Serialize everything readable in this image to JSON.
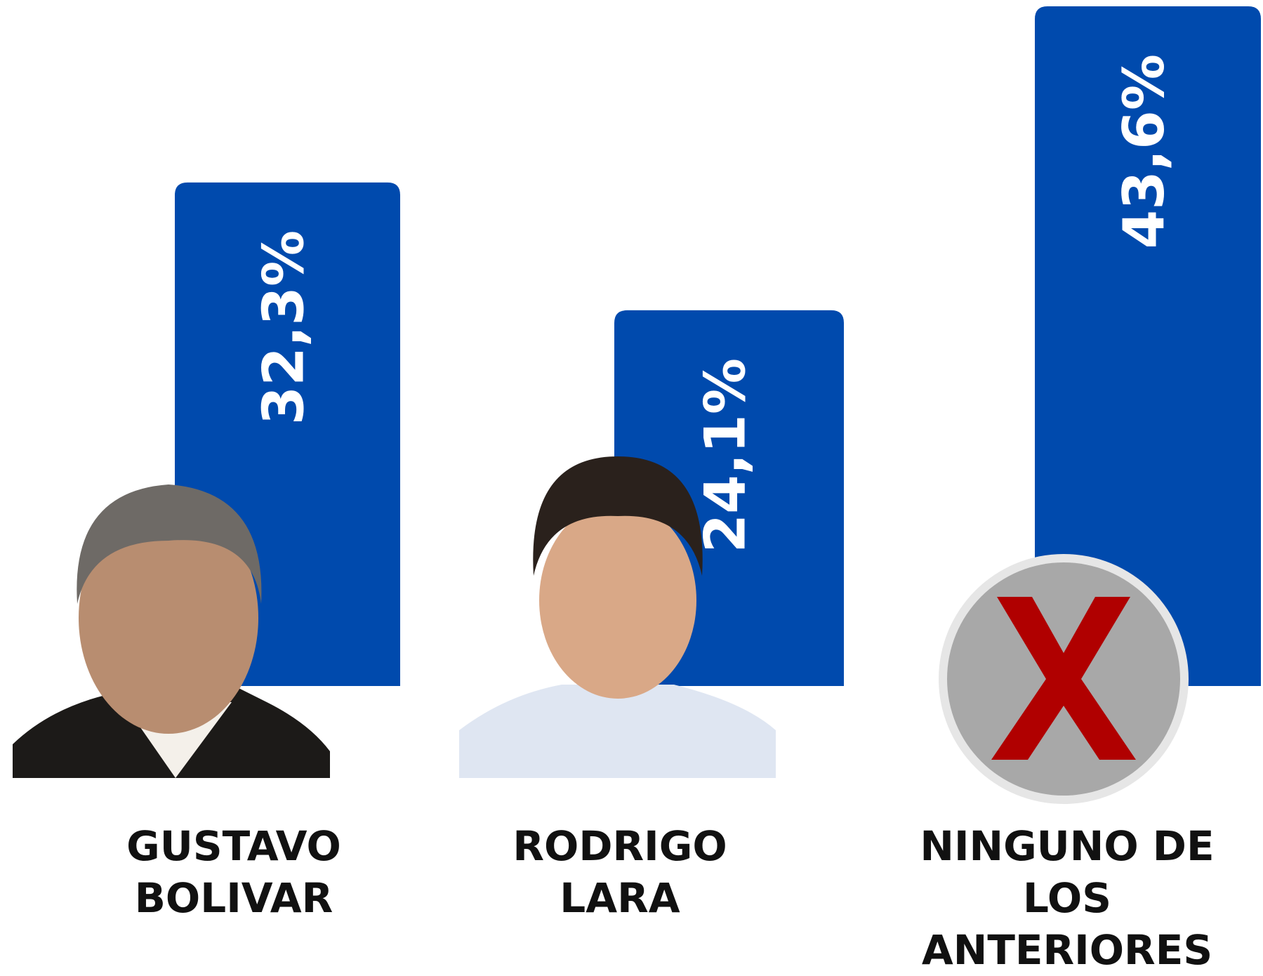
{
  "chart_data": {
    "type": "bar",
    "categories": [
      "GUSTAVO BOLIVAR",
      "RODRIGO LARA",
      "NINGUNO DE LOS ANTERIORES"
    ],
    "values": [
      32.3,
      24.1,
      43.6
    ],
    "value_labels": [
      "32,3%",
      "24,1%",
      "43,6%"
    ],
    "color": "#004aad"
  }
}
